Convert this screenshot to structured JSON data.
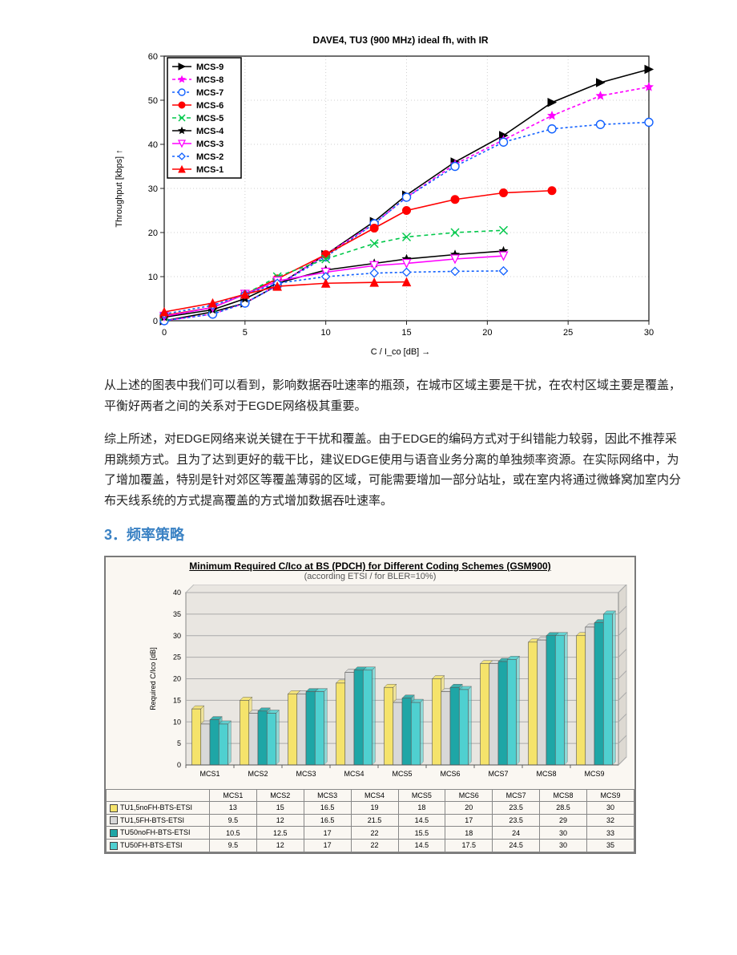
{
  "chart1": {
    "type": "line",
    "title": "DAVE4,   TU3 (900 MHz) ideal fh,   with IR",
    "title_fontsize": 12,
    "xlabel": "C / I_co   [dB]  →",
    "ylabel": "Throughput  [kbps]     ↑",
    "label_fontsize": 11,
    "xlim": [
      0,
      30
    ],
    "ylim": [
      0,
      60
    ],
    "xticks": [
      0,
      5,
      10,
      15,
      20,
      25,
      30
    ],
    "yticks": [
      0,
      10,
      20,
      30,
      40,
      50,
      60
    ],
    "background_color": "#ffffff",
    "grid_color": "#cfcfcf",
    "axis_color": "#222",
    "line_width": 1.6,
    "marker_size": 5,
    "legend_box_stroke": "#000",
    "series": [
      {
        "name": "MCS-9",
        "color": "#000000",
        "marker": "triangle-right",
        "dash": "",
        "pts": [
          [
            0,
            0
          ],
          [
            3,
            2
          ],
          [
            5,
            4
          ],
          [
            7,
            8
          ],
          [
            10,
            15
          ],
          [
            13,
            22.5
          ],
          [
            15,
            28.5
          ],
          [
            18,
            36
          ],
          [
            21,
            42
          ],
          [
            24,
            49.5
          ],
          [
            27,
            54
          ],
          [
            30,
            57
          ]
        ]
      },
      {
        "name": "MCS-8",
        "color": "#ff00ff",
        "marker": "star",
        "dash": "4 3",
        "pts": [
          [
            0,
            0
          ],
          [
            3,
            1.5
          ],
          [
            5,
            4
          ],
          [
            7,
            8
          ],
          [
            10,
            15
          ],
          [
            13,
            22
          ],
          [
            15,
            28
          ],
          [
            18,
            35.5
          ],
          [
            21,
            41
          ],
          [
            24,
            46.5
          ],
          [
            27,
            51
          ],
          [
            30,
            53
          ]
        ]
      },
      {
        "name": "MCS-7",
        "color": "#1060ff",
        "marker": "circle",
        "dash": "3 3",
        "pts": [
          [
            0,
            0
          ],
          [
            3,
            1.5
          ],
          [
            5,
            4
          ],
          [
            7,
            8
          ],
          [
            10,
            14.5
          ],
          [
            13,
            22
          ],
          [
            15,
            28
          ],
          [
            18,
            35
          ],
          [
            21,
            40.5
          ],
          [
            24,
            43.5
          ],
          [
            27,
            44.5
          ],
          [
            30,
            45
          ]
        ]
      },
      {
        "name": "MCS-6",
        "color": "#ff0000",
        "marker": "circle-filled",
        "dash": "",
        "pts": [
          [
            0,
            1.2
          ],
          [
            3,
            3
          ],
          [
            5,
            6
          ],
          [
            7,
            9.5
          ],
          [
            10,
            15
          ],
          [
            13,
            21
          ],
          [
            15,
            25
          ],
          [
            18,
            27.5
          ],
          [
            21,
            29
          ],
          [
            24,
            29.5
          ]
        ]
      },
      {
        "name": "MCS-5",
        "color": "#00c84a",
        "marker": "x",
        "dash": "5 4",
        "pts": [
          [
            0,
            1
          ],
          [
            3,
            3
          ],
          [
            5,
            6
          ],
          [
            7,
            10
          ],
          [
            10,
            14
          ],
          [
            13,
            17.5
          ],
          [
            15,
            19
          ],
          [
            18,
            20
          ],
          [
            21,
            20.5
          ]
        ]
      },
      {
        "name": "MCS-4",
        "color": "#000000",
        "marker": "star",
        "dash": "",
        "pts": [
          [
            0,
            0.8
          ],
          [
            3,
            2.5
          ],
          [
            5,
            5
          ],
          [
            7,
            8.5
          ],
          [
            10,
            11.5
          ],
          [
            13,
            13
          ],
          [
            15,
            14
          ],
          [
            18,
            15
          ],
          [
            21,
            15.8
          ]
        ]
      },
      {
        "name": "MCS-3",
        "color": "#ff00ff",
        "marker": "triangle-down",
        "dash": "",
        "pts": [
          [
            0,
            1
          ],
          [
            3,
            3
          ],
          [
            5,
            6
          ],
          [
            7,
            9
          ],
          [
            10,
            11
          ],
          [
            13,
            12.5
          ],
          [
            15,
            13
          ],
          [
            18,
            14
          ],
          [
            21,
            14.7
          ]
        ]
      },
      {
        "name": "MCS-2",
        "color": "#1060ff",
        "marker": "diamond",
        "dash": "3 3",
        "pts": [
          [
            0,
            1.5
          ],
          [
            3,
            3.5
          ],
          [
            5,
            6
          ],
          [
            7,
            8.5
          ],
          [
            10,
            10
          ],
          [
            13,
            10.8
          ],
          [
            15,
            11
          ],
          [
            18,
            11.2
          ],
          [
            21,
            11.3
          ]
        ]
      },
      {
        "name": "MCS-1",
        "color": "#ff0000",
        "marker": "triangle-up-filled",
        "dash": "",
        "pts": [
          [
            0,
            2
          ],
          [
            3,
            4
          ],
          [
            5,
            6
          ],
          [
            7,
            7.8
          ],
          [
            10,
            8.5
          ],
          [
            13,
            8.7
          ],
          [
            15,
            8.8
          ]
        ]
      }
    ]
  },
  "text": {
    "p1": "从上述的图表中我们可以看到，影响数据吞吐速率的瓶颈，在城市区域主要是干扰，在农村区域主要是覆盖，平衡好两者之间的关系对于EGDE网络极其重要。",
    "p2": "综上所述，对EDGE网络来说关键在于干扰和覆盖。由于EDGE的编码方式对于纠错能力较弱，因此不推荐采用跳频方式。且为了达到更好的载干比，建议EDGE使用与语音业务分离的单独频率资源。在实际网络中，为了增加覆盖，特别是针对郊区等覆盖薄弱的区域，可能需要增加一部分站址，或在室内将通过微蜂窝加室内分布天线系统的方式提高覆盖的方式增加数据吞吐速率。",
    "section3": "3．频率策略"
  },
  "chart2": {
    "type": "bar",
    "title": "Minimum Required C/Ico at BS (PDCH) for Different Coding Schemes (GSM900)",
    "subtitle": "(according ETSI / for BLER=10%)",
    "ylabel": "Required C/Ico [dB]",
    "ylim": [
      0,
      40
    ],
    "ytick_step": 5,
    "yticks": [
      0,
      5,
      10,
      15,
      20,
      25,
      30,
      35,
      40
    ],
    "label_fontsize": 9,
    "background_color": "#faf7f2",
    "panel_color": "#e9e6e1",
    "grid_color": "#aaa",
    "bar_border": "#555",
    "categories": [
      "MCS1",
      "MCS2",
      "MCS3",
      "MCS4",
      "MCS5",
      "MCS6",
      "MCS7",
      "MCS8",
      "MCS9"
    ],
    "series": [
      {
        "name": "TU1,5noFH-BTS-ETSI",
        "color": "#f5e36b",
        "values": [
          13,
          15,
          16.5,
          19,
          18,
          20,
          23.5,
          28.5,
          30
        ]
      },
      {
        "name": "TU1,5FH-BTS-ETSI",
        "color": "#d8d8d8",
        "values": [
          9.5,
          12,
          16.5,
          21.5,
          14.5,
          17,
          23.5,
          29,
          32
        ]
      },
      {
        "name": "TU50noFH-BTS-ETSI",
        "color": "#1ea6a6",
        "values": [
          10.5,
          12.5,
          17,
          22,
          15.5,
          18,
          24,
          30,
          33
        ]
      },
      {
        "name": "TU50FH-BTS-ETSI",
        "color": "#4fd0d0",
        "values": [
          9.5,
          12,
          17,
          22,
          14.5,
          17.5,
          24.5,
          30,
          35
        ]
      }
    ]
  }
}
